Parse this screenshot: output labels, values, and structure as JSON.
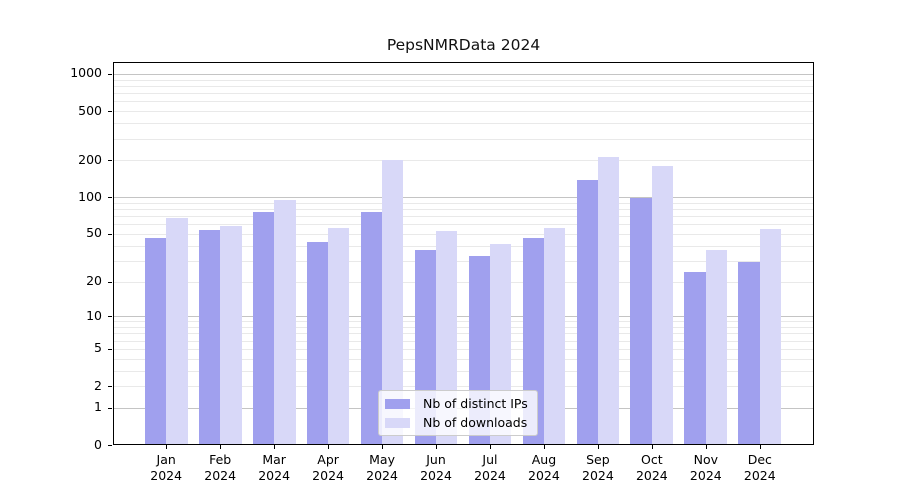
{
  "chart_title": "PepsNMRData 2024",
  "legend": {
    "items": [
      {
        "label": "Nb of distinct IPs",
        "color": "#a0a0ee"
      },
      {
        "label": "Nb of downloads",
        "color": "#d8d8f8"
      }
    ]
  },
  "chart_data": {
    "type": "bar",
    "title": "PepsNMRData 2024",
    "categories": [
      "Jan",
      "Feb",
      "Mar",
      "Apr",
      "May",
      "Jun",
      "Jul",
      "Aug",
      "Sep",
      "Oct",
      "Nov",
      "Dec"
    ],
    "year_label": "2024",
    "series": [
      {
        "name": "Nb of distinct IPs",
        "color": "#a0a0ee",
        "values": [
          46,
          54,
          76,
          43,
          76,
          37,
          33,
          46,
          139,
          98,
          24,
          29
        ]
      },
      {
        "name": "Nb of downloads",
        "color": "#d8d8f8",
        "values": [
          68,
          58,
          95,
          56,
          201,
          53,
          41,
          56,
          213,
          180,
          37,
          55
        ]
      }
    ],
    "xlabel": "",
    "ylabel": "",
    "yscale": "log1p",
    "yticks": [
      0,
      1,
      2,
      5,
      10,
      20,
      50,
      100,
      200,
      500,
      1000
    ],
    "ylim": [
      0,
      1250
    ],
    "grid": "major-and-minor",
    "legend_position": "lower center",
    "colors": {
      "major_grid": "#c4c4c4",
      "minor_grid": "#e9e9e9",
      "axis": "#000000"
    }
  }
}
